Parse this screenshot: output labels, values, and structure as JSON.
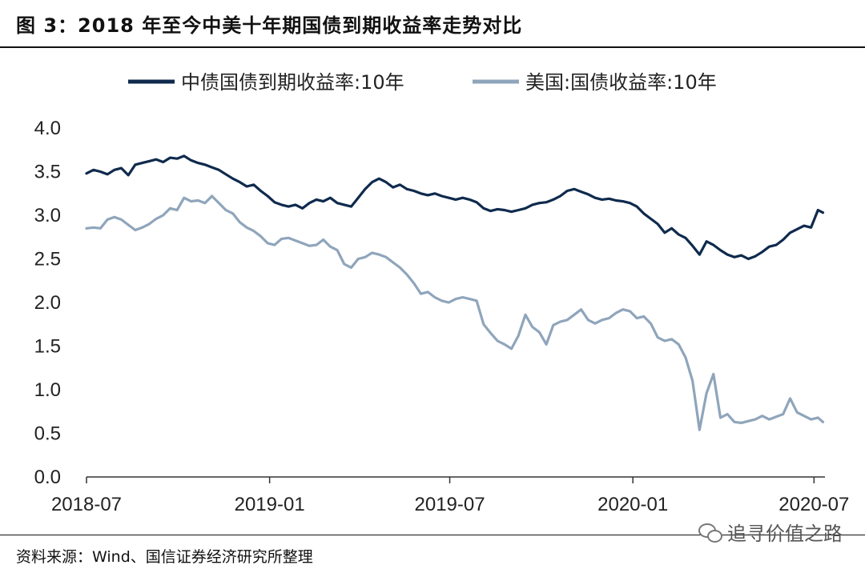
{
  "header": {
    "title": "图 3：2018 年至今中美十年期国债到期收益率走势对比"
  },
  "footer": {
    "source": "资料来源：Wind、国信证券经济研究所整理",
    "watermark": "追寻价值之路"
  },
  "chart_data": {
    "type": "line",
    "title": "图 3：2018 年至今中美十年期国债到期收益率走势对比",
    "xlabel": "",
    "ylabel": "",
    "ylim": [
      0,
      4
    ],
    "yticks": [
      "0.0",
      "0.5",
      "1.0",
      "1.5",
      "2.0",
      "2.5",
      "3.0",
      "3.5",
      "4.0"
    ],
    "xticks": [
      "2018-07",
      "2019-01",
      "2019-07",
      "2020-01",
      "2020-07"
    ],
    "x_range": [
      "2018-07-01",
      "2020-07-12"
    ],
    "legend_position": "top",
    "grid": false,
    "series": [
      {
        "name": "中债国债到期收益率:10年",
        "color": "#0f2a4d",
        "points": [
          [
            "2018-07-01",
            3.48
          ],
          [
            "2018-07-08",
            3.52
          ],
          [
            "2018-07-15",
            3.5
          ],
          [
            "2018-07-22",
            3.47
          ],
          [
            "2018-07-29",
            3.52
          ],
          [
            "2018-08-05",
            3.54
          ],
          [
            "2018-08-12",
            3.46
          ],
          [
            "2018-08-19",
            3.58
          ],
          [
            "2018-08-26",
            3.6
          ],
          [
            "2018-09-02",
            3.62
          ],
          [
            "2018-09-09",
            3.64
          ],
          [
            "2018-09-16",
            3.61
          ],
          [
            "2018-09-23",
            3.66
          ],
          [
            "2018-09-30",
            3.65
          ],
          [
            "2018-10-07",
            3.68
          ],
          [
            "2018-10-14",
            3.63
          ],
          [
            "2018-10-21",
            3.6
          ],
          [
            "2018-10-28",
            3.58
          ],
          [
            "2018-11-04",
            3.55
          ],
          [
            "2018-11-11",
            3.52
          ],
          [
            "2018-11-18",
            3.47
          ],
          [
            "2018-11-25",
            3.42
          ],
          [
            "2018-12-02",
            3.38
          ],
          [
            "2018-12-09",
            3.33
          ],
          [
            "2018-12-16",
            3.35
          ],
          [
            "2018-12-23",
            3.28
          ],
          [
            "2018-12-30",
            3.22
          ],
          [
            "2019-01-06",
            3.15
          ],
          [
            "2019-01-13",
            3.12
          ],
          [
            "2019-01-20",
            3.1
          ],
          [
            "2019-01-27",
            3.12
          ],
          [
            "2019-02-03",
            3.08
          ],
          [
            "2019-02-10",
            3.14
          ],
          [
            "2019-02-17",
            3.18
          ],
          [
            "2019-02-24",
            3.16
          ],
          [
            "2019-03-03",
            3.2
          ],
          [
            "2019-03-10",
            3.14
          ],
          [
            "2019-03-17",
            3.12
          ],
          [
            "2019-03-24",
            3.1
          ],
          [
            "2019-03-31",
            3.2
          ],
          [
            "2019-04-07",
            3.3
          ],
          [
            "2019-04-14",
            3.38
          ],
          [
            "2019-04-21",
            3.42
          ],
          [
            "2019-04-28",
            3.38
          ],
          [
            "2019-05-05",
            3.32
          ],
          [
            "2019-05-12",
            3.35
          ],
          [
            "2019-05-19",
            3.3
          ],
          [
            "2019-05-26",
            3.28
          ],
          [
            "2019-06-02",
            3.25
          ],
          [
            "2019-06-09",
            3.23
          ],
          [
            "2019-06-16",
            3.25
          ],
          [
            "2019-06-23",
            3.22
          ],
          [
            "2019-06-30",
            3.2
          ],
          [
            "2019-07-07",
            3.18
          ],
          [
            "2019-07-14",
            3.2
          ],
          [
            "2019-07-21",
            3.18
          ],
          [
            "2019-07-28",
            3.15
          ],
          [
            "2019-08-04",
            3.08
          ],
          [
            "2019-08-11",
            3.05
          ],
          [
            "2019-08-18",
            3.07
          ],
          [
            "2019-08-25",
            3.06
          ],
          [
            "2019-09-01",
            3.04
          ],
          [
            "2019-09-08",
            3.06
          ],
          [
            "2019-09-15",
            3.08
          ],
          [
            "2019-09-22",
            3.12
          ],
          [
            "2019-09-29",
            3.14
          ],
          [
            "2019-10-06",
            3.15
          ],
          [
            "2019-10-13",
            3.18
          ],
          [
            "2019-10-20",
            3.22
          ],
          [
            "2019-10-27",
            3.28
          ],
          [
            "2019-11-03",
            3.3
          ],
          [
            "2019-11-10",
            3.27
          ],
          [
            "2019-11-17",
            3.24
          ],
          [
            "2019-11-24",
            3.2
          ],
          [
            "2019-12-01",
            3.18
          ],
          [
            "2019-12-08",
            3.19
          ],
          [
            "2019-12-15",
            3.17
          ],
          [
            "2019-12-22",
            3.16
          ],
          [
            "2019-12-29",
            3.14
          ],
          [
            "2020-01-05",
            3.1
          ],
          [
            "2020-01-12",
            3.02
          ],
          [
            "2020-01-19",
            2.96
          ],
          [
            "2020-01-26",
            2.9
          ],
          [
            "2020-02-02",
            2.8
          ],
          [
            "2020-02-09",
            2.85
          ],
          [
            "2020-02-16",
            2.78
          ],
          [
            "2020-02-23",
            2.74
          ],
          [
            "2020-03-01",
            2.65
          ],
          [
            "2020-03-08",
            2.55
          ],
          [
            "2020-03-15",
            2.7
          ],
          [
            "2020-03-22",
            2.66
          ],
          [
            "2020-03-29",
            2.6
          ],
          [
            "2020-04-05",
            2.55
          ],
          [
            "2020-04-12",
            2.52
          ],
          [
            "2020-04-19",
            2.54
          ],
          [
            "2020-04-26",
            2.5
          ],
          [
            "2020-05-03",
            2.53
          ],
          [
            "2020-05-10",
            2.58
          ],
          [
            "2020-05-17",
            2.64
          ],
          [
            "2020-05-24",
            2.66
          ],
          [
            "2020-05-31",
            2.72
          ],
          [
            "2020-06-07",
            2.8
          ],
          [
            "2020-06-14",
            2.84
          ],
          [
            "2020-06-21",
            2.88
          ],
          [
            "2020-06-28",
            2.86
          ],
          [
            "2020-07-05",
            3.06
          ],
          [
            "2020-07-10",
            3.03
          ]
        ]
      },
      {
        "name": "美国:国债收益率:10年",
        "color": "#8fa5bb",
        "points": [
          [
            "2018-07-01",
            2.85
          ],
          [
            "2018-07-08",
            2.86
          ],
          [
            "2018-07-15",
            2.85
          ],
          [
            "2018-07-22",
            2.95
          ],
          [
            "2018-07-29",
            2.98
          ],
          [
            "2018-08-05",
            2.95
          ],
          [
            "2018-08-12",
            2.89
          ],
          [
            "2018-08-19",
            2.83
          ],
          [
            "2018-08-26",
            2.86
          ],
          [
            "2018-09-02",
            2.9
          ],
          [
            "2018-09-09",
            2.96
          ],
          [
            "2018-09-16",
            3.0
          ],
          [
            "2018-09-23",
            3.08
          ],
          [
            "2018-09-30",
            3.06
          ],
          [
            "2018-10-07",
            3.2
          ],
          [
            "2018-10-14",
            3.16
          ],
          [
            "2018-10-21",
            3.17
          ],
          [
            "2018-10-28",
            3.14
          ],
          [
            "2018-11-04",
            3.22
          ],
          [
            "2018-11-11",
            3.14
          ],
          [
            "2018-11-18",
            3.06
          ],
          [
            "2018-11-25",
            3.02
          ],
          [
            "2018-12-02",
            2.92
          ],
          [
            "2018-12-09",
            2.86
          ],
          [
            "2018-12-16",
            2.82
          ],
          [
            "2018-12-23",
            2.76
          ],
          [
            "2018-12-30",
            2.68
          ],
          [
            "2019-01-06",
            2.66
          ],
          [
            "2019-01-13",
            2.73
          ],
          [
            "2019-01-20",
            2.74
          ],
          [
            "2019-01-27",
            2.71
          ],
          [
            "2019-02-03",
            2.68
          ],
          [
            "2019-02-10",
            2.65
          ],
          [
            "2019-02-17",
            2.66
          ],
          [
            "2019-02-24",
            2.72
          ],
          [
            "2019-03-03",
            2.64
          ],
          [
            "2019-03-10",
            2.6
          ],
          [
            "2019-03-17",
            2.44
          ],
          [
            "2019-03-24",
            2.4
          ],
          [
            "2019-03-31",
            2.5
          ],
          [
            "2019-04-07",
            2.52
          ],
          [
            "2019-04-14",
            2.57
          ],
          [
            "2019-04-21",
            2.55
          ],
          [
            "2019-04-28",
            2.52
          ],
          [
            "2019-05-05",
            2.46
          ],
          [
            "2019-05-12",
            2.4
          ],
          [
            "2019-05-19",
            2.32
          ],
          [
            "2019-05-26",
            2.22
          ],
          [
            "2019-06-02",
            2.1
          ],
          [
            "2019-06-09",
            2.12
          ],
          [
            "2019-06-16",
            2.06
          ],
          [
            "2019-06-23",
            2.02
          ],
          [
            "2019-06-30",
            2.0
          ],
          [
            "2019-07-07",
            2.04
          ],
          [
            "2019-07-14",
            2.06
          ],
          [
            "2019-07-21",
            2.04
          ],
          [
            "2019-07-28",
            2.02
          ],
          [
            "2019-08-04",
            1.75
          ],
          [
            "2019-08-11",
            1.65
          ],
          [
            "2019-08-18",
            1.56
          ],
          [
            "2019-08-25",
            1.52
          ],
          [
            "2019-09-01",
            1.47
          ],
          [
            "2019-09-08",
            1.62
          ],
          [
            "2019-09-15",
            1.86
          ],
          [
            "2019-09-22",
            1.72
          ],
          [
            "2019-09-29",
            1.66
          ],
          [
            "2019-10-06",
            1.52
          ],
          [
            "2019-10-13",
            1.74
          ],
          [
            "2019-10-20",
            1.78
          ],
          [
            "2019-10-27",
            1.8
          ],
          [
            "2019-11-03",
            1.86
          ],
          [
            "2019-11-10",
            1.92
          ],
          [
            "2019-11-17",
            1.8
          ],
          [
            "2019-11-24",
            1.76
          ],
          [
            "2019-12-01",
            1.8
          ],
          [
            "2019-12-08",
            1.82
          ],
          [
            "2019-12-15",
            1.88
          ],
          [
            "2019-12-22",
            1.92
          ],
          [
            "2019-12-29",
            1.9
          ],
          [
            "2020-01-05",
            1.82
          ],
          [
            "2020-01-12",
            1.84
          ],
          [
            "2020-01-19",
            1.76
          ],
          [
            "2020-01-26",
            1.6
          ],
          [
            "2020-02-02",
            1.56
          ],
          [
            "2020-02-09",
            1.58
          ],
          [
            "2020-02-16",
            1.52
          ],
          [
            "2020-02-23",
            1.37
          ],
          [
            "2020-03-01",
            1.1
          ],
          [
            "2020-03-08",
            0.54
          ],
          [
            "2020-03-15",
            0.96
          ],
          [
            "2020-03-22",
            1.18
          ],
          [
            "2020-03-29",
            0.68
          ],
          [
            "2020-04-05",
            0.72
          ],
          [
            "2020-04-12",
            0.63
          ],
          [
            "2020-04-19",
            0.62
          ],
          [
            "2020-04-26",
            0.64
          ],
          [
            "2020-05-03",
            0.66
          ],
          [
            "2020-05-10",
            0.7
          ],
          [
            "2020-05-17",
            0.66
          ],
          [
            "2020-05-24",
            0.69
          ],
          [
            "2020-05-31",
            0.72
          ],
          [
            "2020-06-07",
            0.9
          ],
          [
            "2020-06-14",
            0.74
          ],
          [
            "2020-06-21",
            0.7
          ],
          [
            "2020-06-28",
            0.66
          ],
          [
            "2020-07-05",
            0.68
          ],
          [
            "2020-07-10",
            0.63
          ]
        ]
      }
    ]
  }
}
